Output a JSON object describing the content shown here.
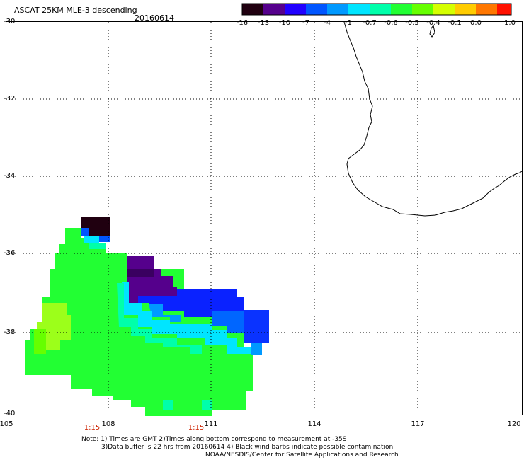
{
  "header": {
    "title": "ASCAT 25KM MLE-3 descending",
    "date": "20160614"
  },
  "colorbar": {
    "labels": [
      "-16",
      "-13",
      "-10",
      "-7",
      "-4",
      "-1",
      "-0.7",
      "-0.6",
      "-0.5",
      "-0.4",
      "-0.1",
      "0.0",
      "1.0"
    ],
    "colors": [
      "#200010",
      "#55008c",
      "#2000ff",
      "#0055ff",
      "#0099ff",
      "#00e5ff",
      "#00ffaa",
      "#22ff33",
      "#66ff00",
      "#d5ff00",
      "#ffcc00",
      "#ff7700",
      "#ff1100"
    ]
  },
  "axes": {
    "lat_labels": [
      "-30",
      "-32",
      "-34",
      "-36",
      "-38",
      "-40"
    ],
    "lon_labels": [
      "105",
      "108",
      "111",
      "114",
      "117",
      "120"
    ],
    "time_labels": [
      "1:15",
      "1:15"
    ]
  },
  "notes": {
    "line1": "Note: 1) Times are GMT 2)Times along bottom correspond to measurement at -35S",
    "line2": "3)Data buffer is 22 hrs from 20160614 4) Black wind barbs indicate possible contamination",
    "line3": "NOAA/NESDIS/Center for Satellite Applications and Research"
  }
}
